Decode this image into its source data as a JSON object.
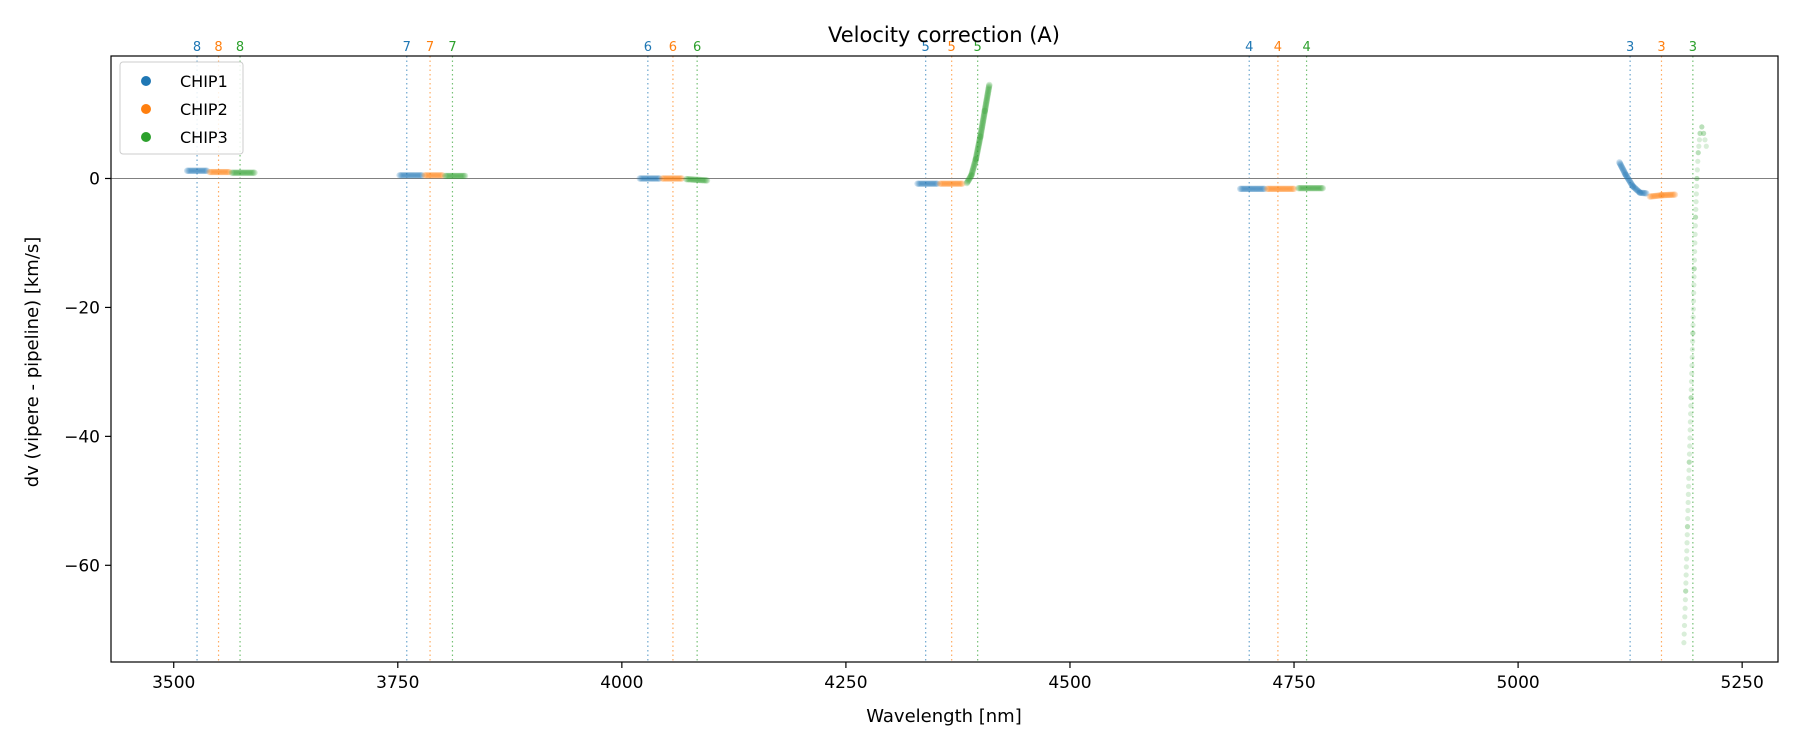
{
  "chart_data": {
    "type": "scatter",
    "title": "Velocity correction (A)",
    "xlabel": "Wavelength [nm]",
    "ylabel": "dv (vipere - pipeline) [km/s]",
    "xlim": [
      3430,
      5290
    ],
    "ylim": [
      -75,
      19
    ],
    "x_ticks": [
      3500,
      3750,
      4000,
      4250,
      4500,
      4750,
      5000,
      5250
    ],
    "y_ticks": [
      0,
      -20,
      -40,
      -60
    ],
    "x_tick_labels": [
      "3500",
      "3750",
      "4000",
      "4250",
      "4500",
      "4750",
      "5000",
      "5250"
    ],
    "y_tick_labels": [
      "0",
      "−20",
      "−40",
      "−60"
    ],
    "grid": false,
    "zero_line": 0,
    "legend_position": "top-left",
    "colors": {
      "CHIP1": "#1f77b4",
      "CHIP2": "#ff7f0e",
      "CHIP3": "#2ca02c"
    },
    "series": [
      {
        "name": "CHIP1",
        "segments": [
          {
            "x_range": [
              3515,
              3537
            ],
            "points": [
              [
                3515,
                1.2
              ],
              [
                3537,
                1.2
              ]
            ]
          },
          {
            "x_range": [
              3752,
              3777
            ],
            "points": [
              [
                3752,
                0.5
              ],
              [
                3777,
                0.5
              ]
            ]
          },
          {
            "x_range": [
              4020,
              4042
            ],
            "points": [
              [
                4020,
                0.0
              ],
              [
                4042,
                0.0
              ]
            ]
          },
          {
            "x_range": [
              4330,
              4352
            ],
            "points": [
              [
                4330,
                -0.8
              ],
              [
                4352,
                -0.8
              ]
            ]
          },
          {
            "x_range": [
              4690,
              4717
            ],
            "points": [
              [
                4690,
                -1.6
              ],
              [
                4717,
                -1.6
              ]
            ]
          },
          {
            "x_range": [
              5113,
              5143
            ],
            "points": [
              [
                5113,
                2.5
              ],
              [
                5120,
                0.6
              ],
              [
                5128,
                -1.2
              ],
              [
                5136,
                -2.2
              ],
              [
                5143,
                -2.3
              ]
            ]
          }
        ],
        "orders": [
          {
            "label": "8",
            "x": 3526
          },
          {
            "label": "7",
            "x": 3760
          },
          {
            "label": "6",
            "x": 4029
          },
          {
            "label": "5",
            "x": 4339
          },
          {
            "label": "4",
            "x": 4700
          },
          {
            "label": "3",
            "x": 5125
          }
        ]
      },
      {
        "name": "CHIP2",
        "segments": [
          {
            "x_range": [
              3540,
              3562
            ],
            "points": [
              [
                3540,
                1.0
              ],
              [
                3562,
                1.0
              ]
            ]
          },
          {
            "x_range": [
              3780,
              3800
            ],
            "points": [
              [
                3780,
                0.5
              ],
              [
                3800,
                0.5
              ]
            ]
          },
          {
            "x_range": [
              4045,
              4067
            ],
            "points": [
              [
                4045,
                0.0
              ],
              [
                4067,
                0.0
              ]
            ]
          },
          {
            "x_range": [
              4355,
              4380
            ],
            "points": [
              [
                4355,
                -0.8
              ],
              [
                4380,
                -0.8
              ]
            ]
          },
          {
            "x_range": [
              4720,
              4750
            ],
            "points": [
              [
                4720,
                -1.6
              ],
              [
                4750,
                -1.6
              ]
            ]
          },
          {
            "x_range": [
              5147,
              5175
            ],
            "points": [
              [
                5147,
                -2.8
              ],
              [
                5160,
                -2.6
              ],
              [
                5175,
                -2.5
              ]
            ]
          }
        ],
        "orders": [
          {
            "label": "8",
            "x": 3550
          },
          {
            "label": "7",
            "x": 3786
          },
          {
            "label": "6",
            "x": 4057
          },
          {
            "label": "5",
            "x": 4368
          },
          {
            "label": "4",
            "x": 4732
          },
          {
            "label": "3",
            "x": 5160
          }
        ]
      },
      {
        "name": "CHIP3",
        "segments": [
          {
            "x_range": [
              3565,
              3590
            ],
            "points": [
              [
                3565,
                0.9
              ],
              [
                3590,
                0.9
              ]
            ]
          },
          {
            "x_range": [
              3803,
              3825
            ],
            "points": [
              [
                3803,
                0.4
              ],
              [
                3825,
                0.4
              ]
            ]
          },
          {
            "x_range": [
              4072,
              4095
            ],
            "points": [
              [
                4072,
                -0.1
              ],
              [
                4095,
                -0.3
              ]
            ]
          },
          {
            "x_range": [
              4385,
              4410
            ],
            "points": [
              [
                4385,
                -0.7
              ],
              [
                4390,
                0.5
              ],
              [
                4395,
                3.0
              ],
              [
                4400,
                6.5
              ],
              [
                4405,
                10.5
              ],
              [
                4410,
                14.5
              ]
            ]
          },
          {
            "x_range": [
              4755,
              4782
            ],
            "points": [
              [
                4755,
                -1.5
              ],
              [
                4782,
                -1.5
              ]
            ]
          },
          {
            "x_range": [
              5185,
              5210
            ],
            "points": [
              [
                5185,
                -72
              ],
              [
                5187,
                -64
              ],
              [
                5189,
                -54
              ],
              [
                5191,
                -44
              ],
              [
                5193,
                -34
              ],
              [
                5195,
                -24
              ],
              [
                5196.5,
                -14
              ],
              [
                5198,
                -6
              ],
              [
                5199.5,
                0
              ],
              [
                5201,
                4
              ],
              [
                5203,
                7
              ],
              [
                5205,
                8
              ],
              [
                5207,
                7
              ],
              [
                5210,
                5
              ]
            ]
          }
        ],
        "orders": [
          {
            "label": "8",
            "x": 3574
          },
          {
            "label": "7",
            "x": 3811
          },
          {
            "label": "6",
            "x": 4084
          },
          {
            "label": "5",
            "x": 4397
          },
          {
            "label": "4",
            "x": 4764
          },
          {
            "label": "3",
            "x": 5195
          }
        ]
      }
    ]
  }
}
